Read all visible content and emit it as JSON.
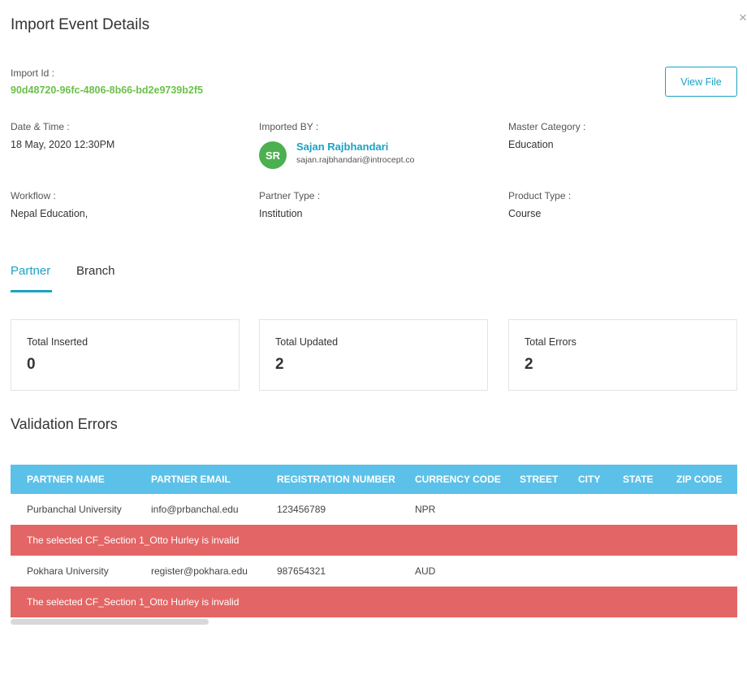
{
  "modal": {
    "title": "Import Event Details",
    "close_glyph": "×"
  },
  "import": {
    "id_label": "Import Id :",
    "id_value": "90d48720-96fc-4806-8b66-bd2e9739b2f5",
    "view_file_label": "View File"
  },
  "details": {
    "datetime_label": "Date & Time :",
    "datetime_value": "18 May, 2020 12:30PM",
    "imported_by_label": "Imported BY :",
    "user_initials": "SR",
    "user_name": "Sajan Rajbhandari",
    "user_email": "sajan.rajbhandari@introcept.co",
    "master_category_label": "Master Category :",
    "master_category_value": "Education",
    "workflow_label": "Workflow :",
    "workflow_value": "Nepal Education,",
    "partner_type_label": "Partner Type :",
    "partner_type_value": "Institution",
    "product_type_label": "Product Type :",
    "product_type_value": "Course"
  },
  "tabs": {
    "partner": "Partner",
    "branch": "Branch",
    "active": "Partner"
  },
  "stats": [
    {
      "label": "Total Inserted",
      "value": "0"
    },
    {
      "label": "Total Updated",
      "value": "2"
    },
    {
      "label": "Total Errors",
      "value": "2"
    }
  ],
  "validation": {
    "title": "Validation Errors",
    "columns": [
      "PARTNER NAME",
      "PARTNER EMAIL",
      "REGISTRATION NUMBER",
      "CURRENCY CODE",
      "STREET",
      "CITY",
      "STATE",
      "ZIP CODE"
    ],
    "rows": [
      {
        "cells": [
          "Purbanchal University",
          "info@prbanchal.edu",
          "123456789",
          "NPR",
          "",
          "",
          "",
          ""
        ],
        "error": "The selected CF_Section 1_Otto Hurley is invalid"
      },
      {
        "cells": [
          "Pokhara University",
          "register@pokhara.edu",
          "987654321",
          "AUD",
          "",
          "",
          "",
          ""
        ],
        "error": "The selected CF_Section 1_Otto Hurley is invalid"
      }
    ]
  },
  "colors": {
    "accent": "#1ba3c4",
    "import_id": "#6cc04a",
    "avatar": "#4caf50",
    "table_header": "#5bc1e9",
    "error_row": "#e46565"
  },
  "icons": {
    "close": "close-icon"
  }
}
